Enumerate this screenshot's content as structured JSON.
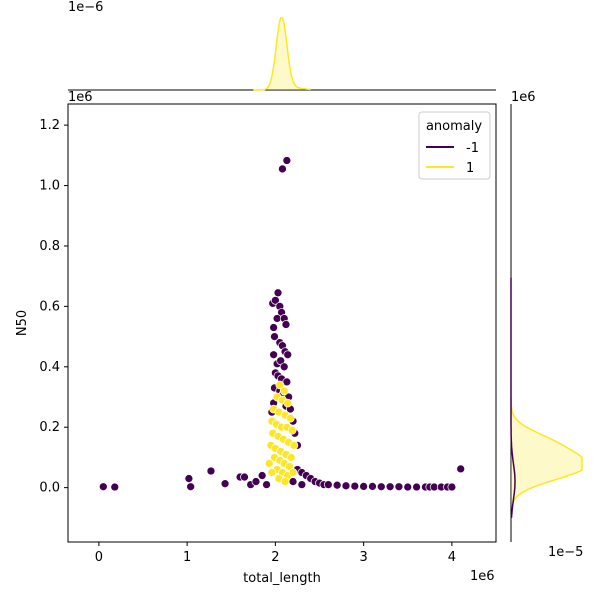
{
  "chart_data": {
    "type": "scatter",
    "title": "",
    "xlabel": "total_length",
    "ylabel": "N50",
    "x_offset_label": "1e6",
    "y_offset_label": "1e6",
    "xlim": [
      -0.35,
      4.5
    ],
    "ylim": [
      -0.18,
      1.27
    ],
    "xticks": [
      0,
      1,
      2,
      3,
      4
    ],
    "yticks": [
      0.0,
      0.2,
      0.4,
      0.6,
      0.8,
      1.0,
      1.2
    ],
    "xtick_labels": [
      "0",
      "1",
      "2",
      "3",
      "4"
    ],
    "ytick_labels": [
      "0.0",
      "0.2",
      "0.4",
      "0.6",
      "0.8",
      "1.0",
      "1.2"
    ],
    "legend": {
      "title": "anomaly",
      "placement": "top-right",
      "entries": [
        {
          "label": "-1",
          "color": "#440154"
        },
        {
          "label": "1",
          "color": "#fde725"
        }
      ]
    },
    "series": [
      {
        "name": "-1",
        "color": "#440154",
        "points": [
          [
            0.05,
            0.003
          ],
          [
            0.18,
            0.002
          ],
          [
            1.02,
            0.03
          ],
          [
            1.04,
            0.003
          ],
          [
            1.27,
            0.055
          ],
          [
            1.43,
            0.013
          ],
          [
            1.6,
            0.035
          ],
          [
            1.65,
            0.035
          ],
          [
            1.72,
            0.01
          ],
          [
            1.78,
            0.02
          ],
          [
            1.85,
            0.04
          ],
          [
            1.9,
            0.01
          ],
          [
            2.08,
            1.055
          ],
          [
            2.13,
            1.083
          ],
          [
            1.97,
            0.61
          ],
          [
            2.0,
            0.62
          ],
          [
            2.03,
            0.645
          ],
          [
            2.05,
            0.6
          ],
          [
            2.07,
            0.58
          ],
          [
            1.98,
            0.53
          ],
          [
            2.02,
            0.56
          ],
          [
            2.1,
            0.56
          ],
          [
            2.12,
            0.54
          ],
          [
            1.99,
            0.5
          ],
          [
            2.05,
            0.48
          ],
          [
            2.08,
            0.47
          ],
          [
            2.11,
            0.45
          ],
          [
            2.14,
            0.44
          ],
          [
            1.98,
            0.44
          ],
          [
            2.02,
            0.41
          ],
          [
            2.06,
            0.42
          ],
          [
            2.1,
            0.4
          ],
          [
            2.0,
            0.38
          ],
          [
            2.03,
            0.37
          ],
          [
            2.07,
            0.36
          ],
          [
            2.13,
            0.35
          ],
          [
            1.99,
            0.33
          ],
          [
            2.05,
            0.32
          ],
          [
            2.09,
            0.31
          ],
          [
            2.15,
            0.3
          ],
          [
            1.98,
            0.28
          ],
          [
            2.12,
            0.27
          ],
          [
            2.17,
            0.26
          ],
          [
            2.2,
            0.22
          ],
          [
            2.22,
            0.18
          ],
          [
            2.25,
            0.14
          ],
          [
            1.96,
            0.25
          ],
          [
            1.97,
            0.22
          ],
          [
            2.25,
            0.06
          ],
          [
            2.3,
            0.05
          ],
          [
            2.35,
            0.04
          ],
          [
            2.4,
            0.03
          ],
          [
            2.45,
            0.02
          ],
          [
            2.5,
            0.015
          ],
          [
            2.2,
            0.02
          ],
          [
            2.3,
            0.01
          ],
          [
            2.55,
            0.01
          ],
          [
            2.6,
            0.01
          ],
          [
            2.7,
            0.008
          ],
          [
            2.8,
            0.006
          ],
          [
            2.9,
            0.005
          ],
          [
            3.0,
            0.004
          ],
          [
            3.1,
            0.004
          ],
          [
            3.2,
            0.003
          ],
          [
            3.3,
            0.003
          ],
          [
            3.4,
            0.003
          ],
          [
            3.5,
            0.002
          ],
          [
            3.6,
            0.002
          ],
          [
            3.7,
            0.002
          ],
          [
            3.75,
            0.002
          ],
          [
            3.8,
            0.002
          ],
          [
            3.88,
            0.002
          ],
          [
            3.95,
            0.002
          ],
          [
            4.0,
            0.002
          ],
          [
            4.1,
            0.062
          ]
        ]
      },
      {
        "name": "1",
        "color": "#fde725",
        "points": [
          [
            2.05,
            0.34
          ],
          [
            2.1,
            0.32
          ],
          [
            2.02,
            0.3
          ],
          [
            2.08,
            0.29
          ],
          [
            2.14,
            0.28
          ],
          [
            1.98,
            0.26
          ],
          [
            2.04,
            0.25
          ],
          [
            2.11,
            0.24
          ],
          [
            2.17,
            0.23
          ],
          [
            1.96,
            0.22
          ],
          [
            2.01,
            0.21
          ],
          [
            2.07,
            0.2
          ],
          [
            2.13,
            0.2
          ],
          [
            2.19,
            0.19
          ],
          [
            1.97,
            0.18
          ],
          [
            2.03,
            0.17
          ],
          [
            2.09,
            0.16
          ],
          [
            2.15,
            0.15
          ],
          [
            2.21,
            0.14
          ],
          [
            1.95,
            0.14
          ],
          [
            2.0,
            0.13
          ],
          [
            2.06,
            0.12
          ],
          [
            2.12,
            0.11
          ],
          [
            2.18,
            0.1
          ],
          [
            1.99,
            0.1
          ],
          [
            2.05,
            0.09
          ],
          [
            2.1,
            0.08
          ],
          [
            2.16,
            0.07
          ],
          [
            2.02,
            0.06
          ],
          [
            2.08,
            0.05
          ],
          [
            2.14,
            0.04
          ],
          [
            2.2,
            0.05
          ],
          [
            1.93,
            0.08
          ],
          [
            1.96,
            0.05
          ],
          [
            2.04,
            0.03
          ],
          [
            2.11,
            0.02
          ]
        ]
      }
    ],
    "marginal_top": {
      "offset_label": "1e−6",
      "series": [
        {
          "name": "1",
          "color": "#fde725",
          "peak_x": 2.07,
          "sd": 0.06,
          "peak_ratio": 1.0
        }
      ]
    },
    "marginal_right": {
      "offset_label": "1e−5",
      "top_offset_label": "1e6",
      "series": [
        {
          "name": "1",
          "color": "#fde725",
          "peak_y": 0.07,
          "sd": 0.045,
          "peak_ratio": 1.0
        }
      ]
    }
  }
}
